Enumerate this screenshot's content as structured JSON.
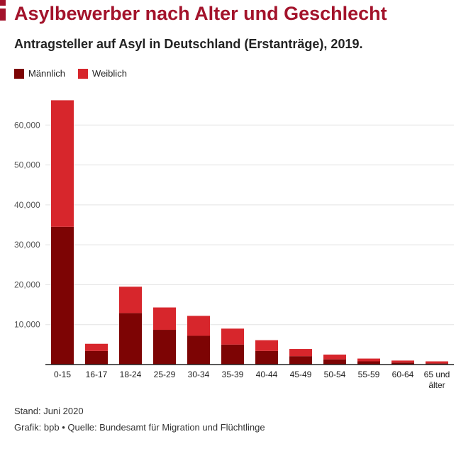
{
  "title": "Asylbewerber nach Alter und Geschlecht",
  "subtitle": "Antragsteller auf Asyl in Deutschland (Erstanträge), 2019.",
  "footer": {
    "stand": "Stand: Juni 2020",
    "source": "Grafik: bpb • Quelle: Bundesamt für Migration und Flüchtlinge"
  },
  "colors": {
    "brand": "#a3132b",
    "male": "#7d0404",
    "female": "#d7262c",
    "grid": "#e3e3e3",
    "axis": "#222222"
  },
  "chart_data": {
    "type": "bar",
    "stacked": true,
    "categories": [
      "0-15",
      "16-17",
      "18-24",
      "25-29",
      "30-34",
      "35-39",
      "40-44",
      "45-49",
      "50-54",
      "55-59",
      "60-64",
      "65 und älter"
    ],
    "series": [
      {
        "name": "Männlich",
        "values": [
          34500,
          3400,
          12900,
          8700,
          7200,
          5000,
          3400,
          2100,
          1300,
          800,
          500,
          300
        ]
      },
      {
        "name": "Weiblich",
        "values": [
          31700,
          1800,
          6600,
          5600,
          5000,
          4000,
          2700,
          1800,
          1200,
          700,
          500,
          500
        ]
      }
    ],
    "ylim": [
      0,
      70000
    ],
    "yticks": [
      0,
      10000,
      20000,
      30000,
      40000,
      50000,
      60000
    ],
    "ytick_labels": [
      "",
      "10,000",
      "20,000",
      "30,000",
      "40,000",
      "50,000",
      "60,000"
    ],
    "grid": true,
    "legend": "top-left"
  }
}
